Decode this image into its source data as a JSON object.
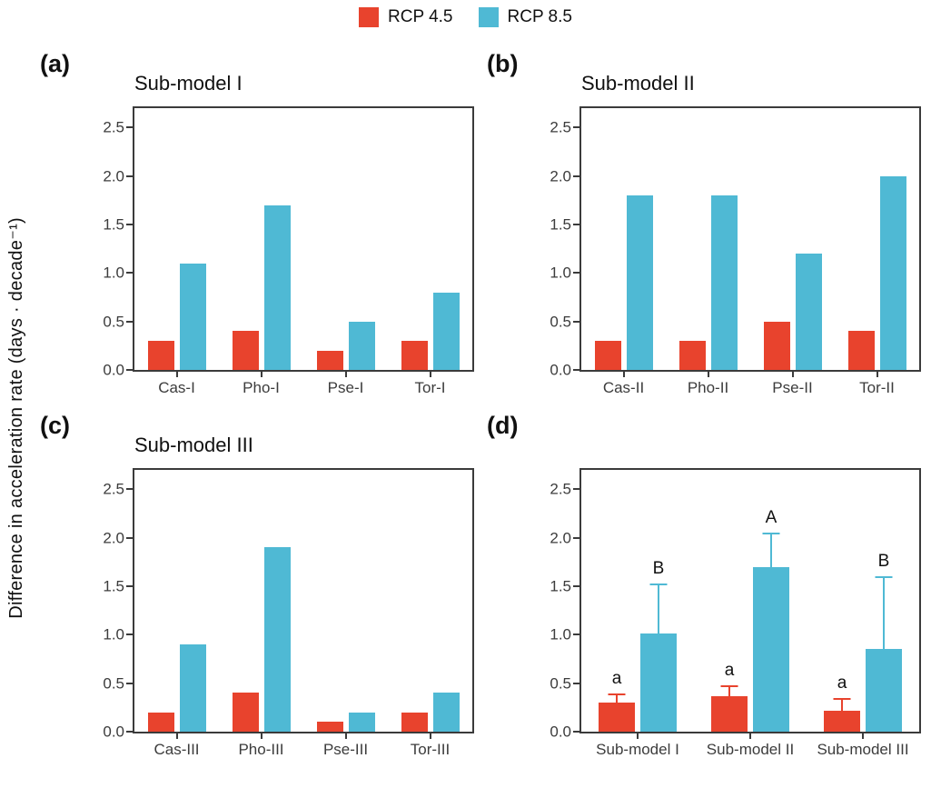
{
  "legend": {
    "items": [
      {
        "label": "RCP 4.5",
        "color": "#E8432D"
      },
      {
        "label": "RCP 8.5",
        "color": "#4FB9D4"
      }
    ]
  },
  "y_axis_label": "Difference in acceleration rate (days · decade⁻¹)",
  "axes": {
    "ylim": [
      0,
      2.7
    ],
    "yticks": [
      0,
      0.5,
      1.0,
      1.5,
      2.0,
      2.5
    ],
    "grid": false
  },
  "chart_data": [
    {
      "panel": "a",
      "label": "(a)",
      "title": "Sub-model I",
      "type": "bar",
      "categories": [
        "Cas-I",
        "Pho-I",
        "Pse-I",
        "Tor-I"
      ],
      "series": [
        {
          "name": "RCP 4.5",
          "color": "#E8432D",
          "values": [
            0.3,
            0.4,
            0.2,
            0.3
          ]
        },
        {
          "name": "RCP 8.5",
          "color": "#4FB9D4",
          "values": [
            1.1,
            1.7,
            0.5,
            0.8
          ]
        }
      ]
    },
    {
      "panel": "b",
      "label": "(b)",
      "title": "Sub-model II",
      "type": "bar",
      "categories": [
        "Cas-II",
        "Pho-II",
        "Pse-II",
        "Tor-II"
      ],
      "series": [
        {
          "name": "RCP 4.5",
          "color": "#E8432D",
          "values": [
            0.3,
            0.3,
            0.5,
            0.4
          ]
        },
        {
          "name": "RCP 8.5",
          "color": "#4FB9D4",
          "values": [
            1.8,
            1.8,
            1.2,
            2.0
          ]
        }
      ]
    },
    {
      "panel": "c",
      "label": "(c)",
      "title": "Sub-model III",
      "type": "bar",
      "categories": [
        "Cas-III",
        "Pho-III",
        "Pse-III",
        "Tor-III"
      ],
      "series": [
        {
          "name": "RCP 4.5",
          "color": "#E8432D",
          "values": [
            0.2,
            0.4,
            0.1,
            0.2
          ]
        },
        {
          "name": "RCP 8.5",
          "color": "#4FB9D4",
          "values": [
            0.9,
            1.9,
            0.2,
            0.4
          ]
        }
      ]
    },
    {
      "panel": "d",
      "label": "(d)",
      "title": "",
      "type": "bar",
      "categories": [
        "Sub-model I",
        "Sub-model II",
        "Sub-model III"
      ],
      "series": [
        {
          "name": "RCP 4.5",
          "color": "#E8432D",
          "values": [
            0.3,
            0.37,
            0.22
          ],
          "error_top": [
            0.39,
            0.48,
            0.35
          ],
          "letters": [
            "a",
            "a",
            "a"
          ]
        },
        {
          "name": "RCP 8.5",
          "color": "#4FB9D4",
          "values": [
            1.01,
            1.7,
            0.85
          ],
          "error_top": [
            1.53,
            2.05,
            1.6
          ],
          "letters": [
            "B",
            "A",
            "B"
          ]
        }
      ]
    }
  ]
}
